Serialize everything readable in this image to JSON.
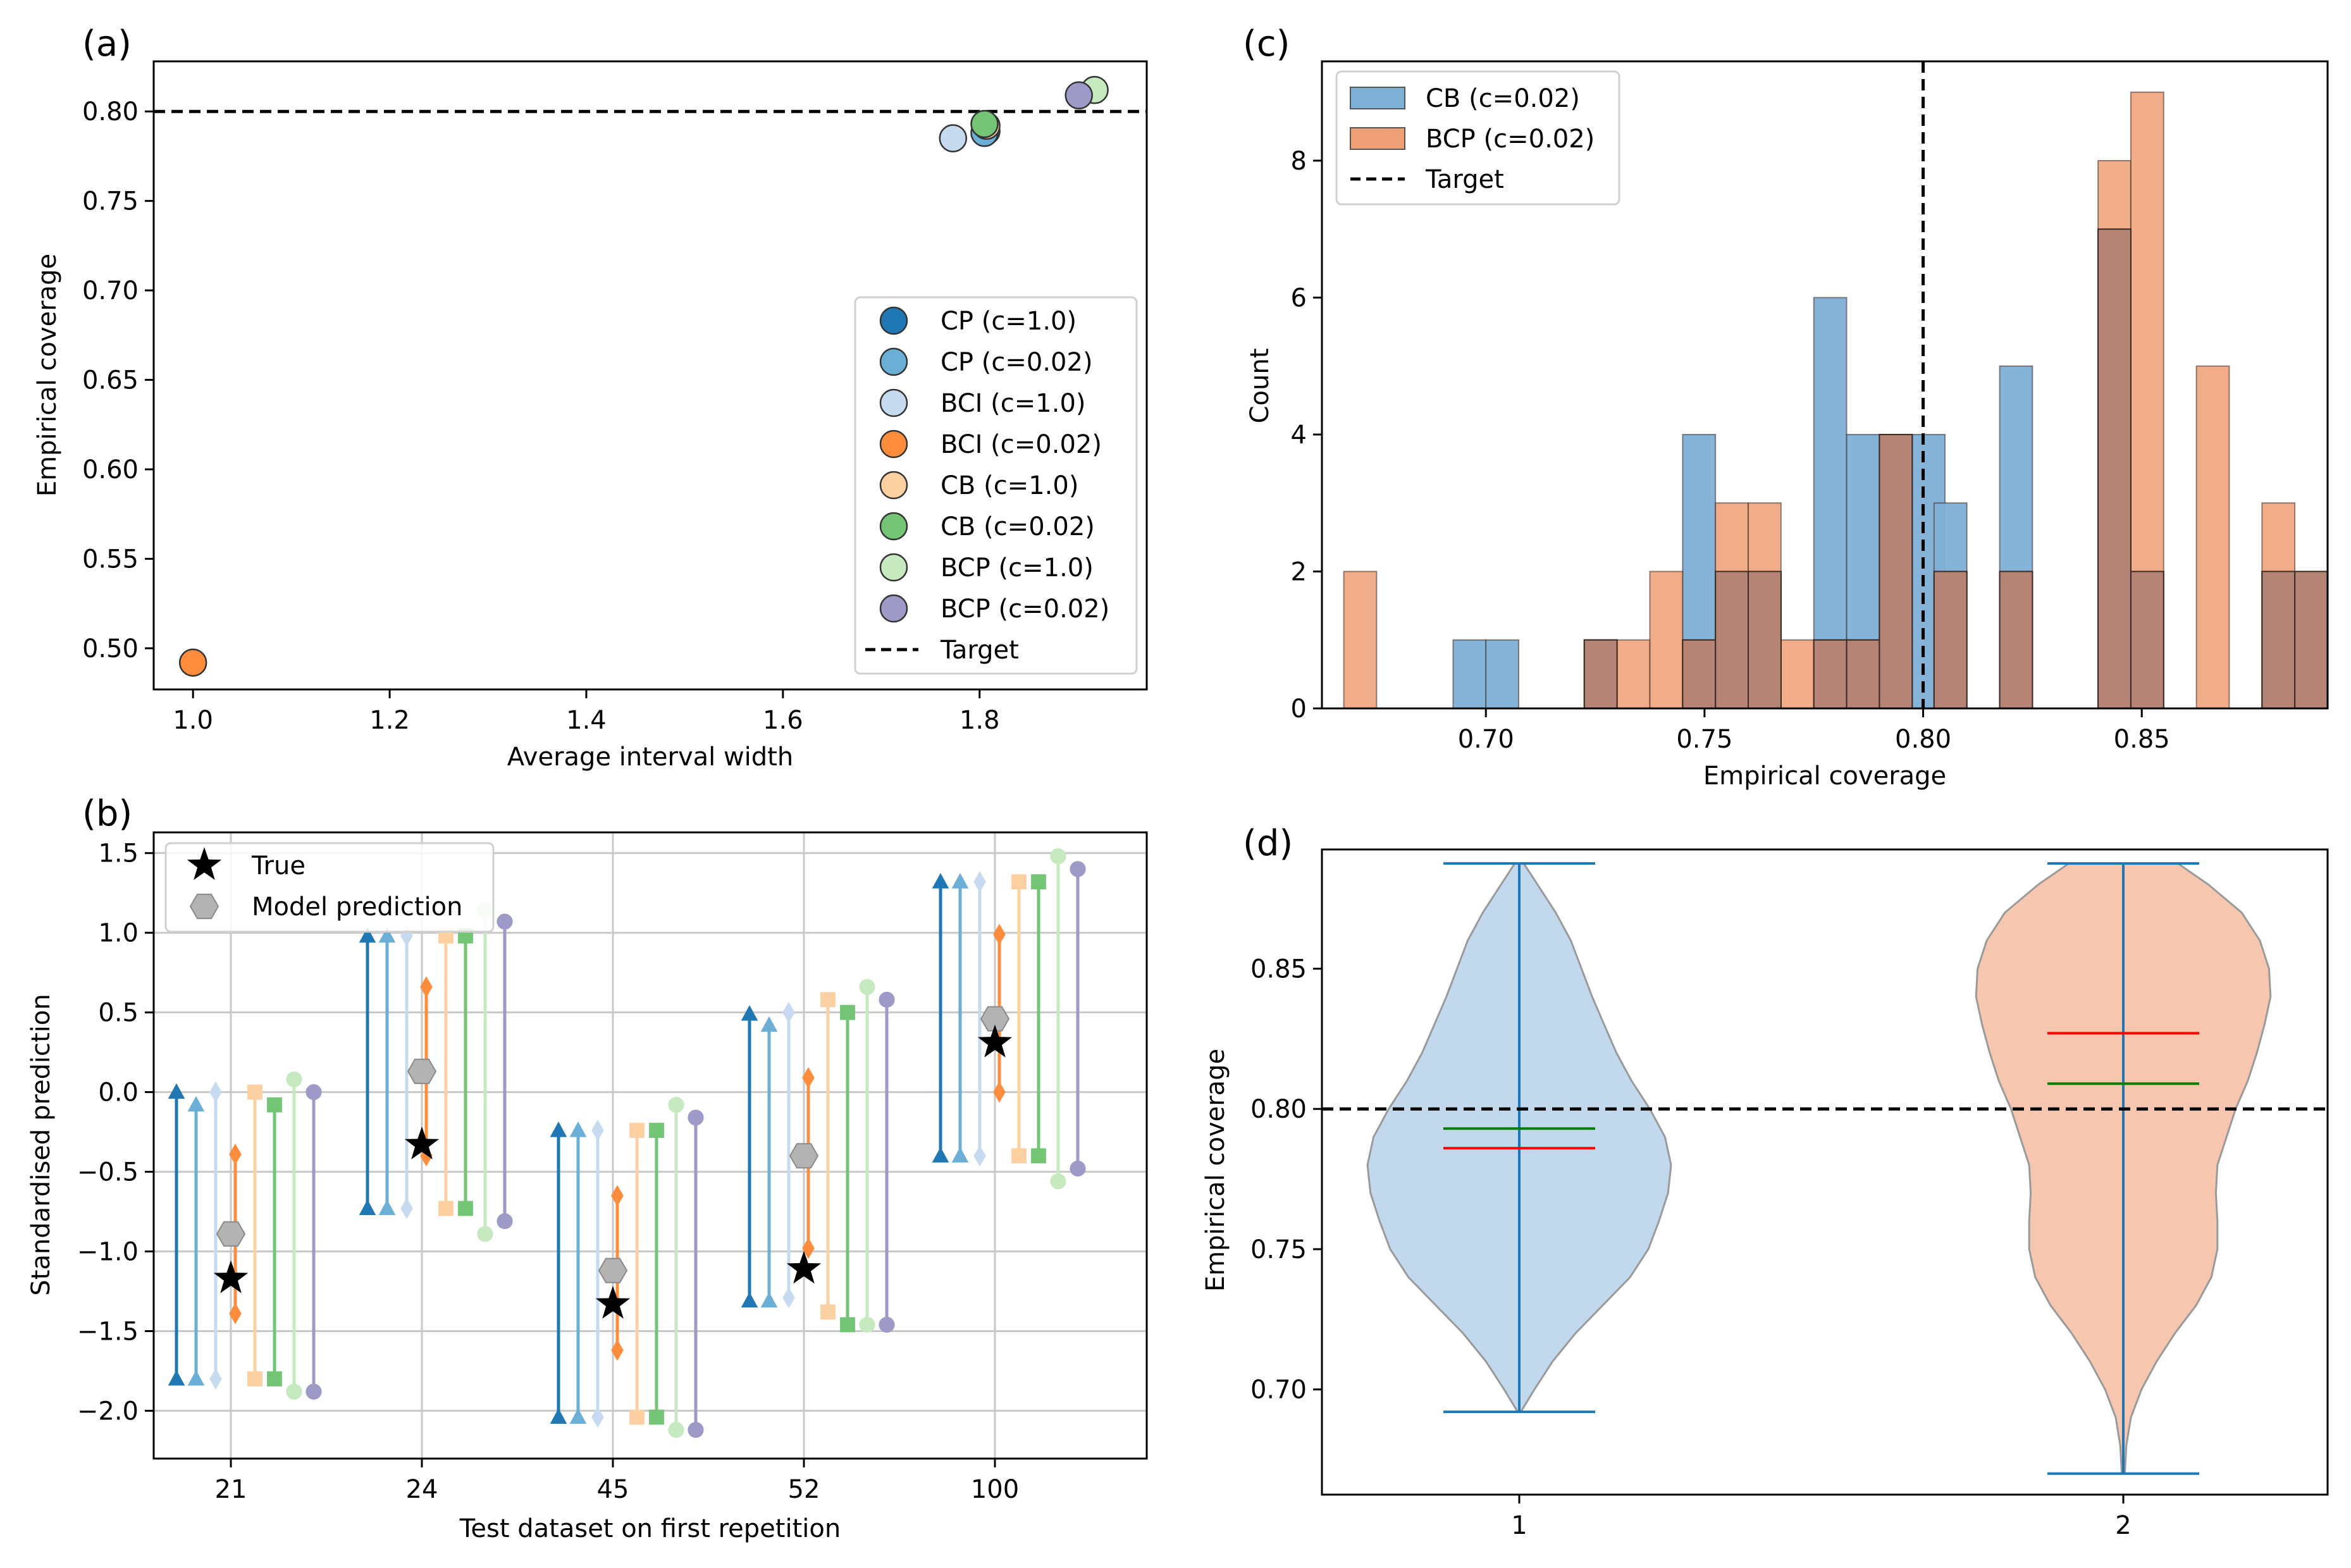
{
  "colors": {
    "cp10": "#1f77b4",
    "cp002": "#6baed6",
    "bci10": "#c6dbef",
    "bci002": "#fd8d3c",
    "cb10": "#fdd0a2",
    "cb002": "#74c476",
    "bcp10": "#c7e9c0",
    "bcp002": "#9e9ac8",
    "hist_cb": "#7fb0d6",
    "hist_bcp": "#ee9f76",
    "hist_overlap": "#b58474",
    "violin_1": "#c2d8ec",
    "violin_2": "#f6c6ae",
    "violin_edge": "#9a9a9a",
    "violin_line": "#1f77b4",
    "mean_line": "#ff0000",
    "median_line": "#008000",
    "true_star": "#000000",
    "model_pred": "#b3b3b3",
    "grid": "#c8c8c8"
  },
  "chart_data": [
    {
      "id": "a",
      "panel_label": "(a)",
      "type": "scatter",
      "xlabel": "Average interval width",
      "ylabel": "Empirical coverage",
      "xlim": [
        0.96,
        1.97
      ],
      "ylim": [
        0.477,
        0.828
      ],
      "xticks": [
        "1.0",
        "1.2",
        "1.4",
        "1.6",
        "1.8"
      ],
      "xtick_values": [
        1.0,
        1.2,
        1.4,
        1.6,
        1.8
      ],
      "yticks": [
        "0.50",
        "0.55",
        "0.60",
        "0.65",
        "0.70",
        "0.75",
        "0.80"
      ],
      "ytick_values": [
        0.5,
        0.55,
        0.6,
        0.65,
        0.7,
        0.75,
        0.8
      ],
      "target": 0.8,
      "target_label": "Target",
      "points": [
        {
          "name": "CP (c=1.0)",
          "color_key": "cp10",
          "x": 1.807,
          "y": 0.789
        },
        {
          "name": "CP (c=0.02)",
          "color_key": "cp002",
          "x": 1.805,
          "y": 0.788
        },
        {
          "name": "BCI (c=1.0)",
          "color_key": "bci10",
          "x": 1.773,
          "y": 0.785
        },
        {
          "name": "BCI (c=0.02)",
          "color_key": "bci002",
          "x": 1.0,
          "y": 0.492
        },
        {
          "name": "CB (c=1.0)",
          "color_key": "cb10",
          "x": 1.807,
          "y": 0.792
        },
        {
          "name": "CB (c=0.02)",
          "color_key": "cb002",
          "x": 1.805,
          "y": 0.793
        },
        {
          "name": "BCP (c=1.0)",
          "color_key": "bcp10",
          "x": 1.917,
          "y": 0.812
        },
        {
          "name": "BCP (c=0.02)",
          "color_key": "bcp002",
          "x": 1.901,
          "y": 0.809
        }
      ],
      "legend": [
        "CP (c=1.0)",
        "CP (c=0.02)",
        "BCI (c=1.0)",
        "BCI (c=0.02)",
        "CB (c=1.0)",
        "CB (c=0.02)",
        "BCP (c=1.0)",
        "BCP (c=0.02)",
        "Target"
      ]
    },
    {
      "id": "b",
      "panel_label": "(b)",
      "type": "interval",
      "xlabel": "Test dataset on first repetition",
      "ylabel": "Standardised prediction",
      "ylim": [
        -2.3,
        1.63
      ],
      "yticks": [
        "−2.0",
        "−1.5",
        "−1.0",
        "−0.5",
        "0.0",
        "0.5",
        "1.0",
        "1.5"
      ],
      "ytick_values": [
        -2.0,
        -1.5,
        -1.0,
        -0.5,
        0.0,
        0.5,
        1.0,
        1.5
      ],
      "categories": [
        "21",
        "24",
        "45",
        "52",
        "100"
      ],
      "method_order": [
        "CP (c=1.0)",
        "CP (c=0.02)",
        "BCI (c=1.0)",
        "BCI (c=0.02)",
        "CB (c=1.0)",
        "CB (c=0.02)",
        "BCP (c=1.0)",
        "BCP (c=0.02)"
      ],
      "method_colors": [
        "cp10",
        "cp002",
        "bci10",
        "bci002",
        "cb10",
        "cb002",
        "bcp10",
        "bcp002"
      ],
      "method_markers": [
        "triangle",
        "triangle",
        "diamond",
        "diamond",
        "square",
        "square",
        "circle",
        "circle"
      ],
      "legend": [
        "True",
        "Model prediction"
      ],
      "datasets": [
        {
          "label": "21",
          "true": -1.17,
          "pred": -0.89,
          "intervals": [
            [
              -1.8,
              0.0
            ],
            [
              -1.8,
              -0.08
            ],
            [
              -1.8,
              0.0
            ],
            [
              -1.39,
              -0.39
            ],
            [
              -1.8,
              0.0
            ],
            [
              -1.8,
              -0.08
            ],
            [
              -1.88,
              0.08
            ],
            [
              -1.88,
              0.0
            ]
          ]
        },
        {
          "label": "24",
          "true": -0.33,
          "pred": 0.13,
          "intervals": [
            [
              -0.73,
              0.98
            ],
            [
              -0.73,
              0.98
            ],
            [
              -0.73,
              0.98
            ],
            [
              -0.4,
              0.66
            ],
            [
              -0.73,
              0.98
            ],
            [
              -0.73,
              0.98
            ],
            [
              -0.89,
              1.14
            ],
            [
              -0.81,
              1.07
            ]
          ]
        },
        {
          "label": "45",
          "true": -1.33,
          "pred": -1.12,
          "intervals": [
            [
              -2.04,
              -0.24
            ],
            [
              -2.04,
              -0.24
            ],
            [
              -2.04,
              -0.24
            ],
            [
              -1.62,
              -0.65
            ],
            [
              -2.04,
              -0.24
            ],
            [
              -2.04,
              -0.24
            ],
            [
              -2.12,
              -0.08
            ],
            [
              -2.12,
              -0.16
            ]
          ]
        },
        {
          "label": "52",
          "true": -1.11,
          "pred": -0.4,
          "intervals": [
            [
              -1.31,
              0.49
            ],
            [
              -1.31,
              0.42
            ],
            [
              -1.29,
              0.5
            ],
            [
              -0.98,
              0.09
            ],
            [
              -1.38,
              0.58
            ],
            [
              -1.46,
              0.5
            ],
            [
              -1.46,
              0.66
            ],
            [
              -1.46,
              0.58
            ]
          ]
        },
        {
          "label": "100",
          "true": 0.31,
          "pred": 0.46,
          "intervals": [
            [
              -0.4,
              1.32
            ],
            [
              -0.4,
              1.32
            ],
            [
              -0.4,
              1.32
            ],
            [
              0.0,
              0.99
            ],
            [
              -0.4,
              1.32
            ],
            [
              -0.4,
              1.32
            ],
            [
              -0.56,
              1.48
            ],
            [
              -0.48,
              1.4
            ]
          ]
        }
      ]
    },
    {
      "id": "c",
      "panel_label": "(c)",
      "type": "histogram",
      "xlabel": "Empirical coverage",
      "ylabel": "Count",
      "xlim": [
        0.6625,
        0.8925
      ],
      "ylim": [
        0,
        9.45
      ],
      "xticks": [
        "0.70",
        "0.75",
        "0.80",
        "0.85"
      ],
      "xtick_values": [
        0.7,
        0.75,
        0.8,
        0.85
      ],
      "yticks": [
        "0",
        "2",
        "4",
        "6",
        "8"
      ],
      "ytick_values": [
        0,
        2,
        4,
        6,
        8
      ],
      "target": 0.8,
      "target_label": "Target",
      "legend": [
        "CB (c=0.02)",
        "BCP (c=0.02)",
        "Target"
      ],
      "series": [
        {
          "name": "CB (c=0.02)",
          "color_key": "hist_cb",
          "bins": [
            [
              0.6925,
              0.7,
              1
            ],
            [
              0.7,
              0.7075,
              1
            ],
            [
              0.7225,
              0.73,
              1
            ],
            [
              0.745,
              0.7525,
              4
            ],
            [
              0.7525,
              0.76,
              2
            ],
            [
              0.76,
              0.7675,
              2
            ],
            [
              0.775,
              0.7825,
              6
            ],
            [
              0.7825,
              0.79,
              4
            ],
            [
              0.79,
              0.7975,
              4
            ],
            [
              0.7975,
              0.805,
              4
            ],
            [
              0.8025,
              0.81,
              3
            ],
            [
              0.8175,
              0.825,
              5
            ],
            [
              0.84,
              0.8475,
              7
            ],
            [
              0.8475,
              0.855,
              2
            ],
            [
              0.8775,
              0.885,
              2
            ],
            [
              0.885,
              0.8925,
              2
            ]
          ]
        },
        {
          "name": "BCP (c=0.02)",
          "color_key": "hist_bcp",
          "bins": [
            [
              0.6675,
              0.675,
              2
            ],
            [
              0.7225,
              0.73,
              1
            ],
            [
              0.73,
              0.7375,
              1
            ],
            [
              0.7375,
              0.745,
              2
            ],
            [
              0.745,
              0.7525,
              1
            ],
            [
              0.7525,
              0.76,
              3
            ],
            [
              0.76,
              0.7675,
              3
            ],
            [
              0.7675,
              0.775,
              1
            ],
            [
              0.775,
              0.7825,
              1
            ],
            [
              0.7825,
              0.79,
              1
            ],
            [
              0.79,
              0.7975,
              4
            ],
            [
              0.8025,
              0.81,
              2
            ],
            [
              0.8175,
              0.825,
              2
            ],
            [
              0.84,
              0.8475,
              8
            ],
            [
              0.8475,
              0.855,
              9
            ],
            [
              0.8625,
              0.87,
              5
            ],
            [
              0.8775,
              0.885,
              3
            ],
            [
              0.885,
              0.8925,
              2
            ]
          ]
        }
      ]
    },
    {
      "id": "d",
      "panel_label": "(d)",
      "type": "violin",
      "ylabel": "Empirical coverage",
      "xticks": [
        "1",
        "2"
      ],
      "ylim": [
        0.6625,
        0.8925
      ],
      "yticks": [
        "0.70",
        "0.75",
        "0.80",
        "0.85"
      ],
      "ytick_values": [
        0.7,
        0.75,
        0.8,
        0.85
      ],
      "target": 0.8,
      "violins": [
        {
          "label": "1",
          "color_key": "violin_1",
          "min": 0.692,
          "max": 0.8875,
          "mean": 0.786,
          "median": 0.793,
          "profile": [
            [
              0.692,
              0.01
            ],
            [
              0.7,
              0.1
            ],
            [
              0.71,
              0.22
            ],
            [
              0.72,
              0.37
            ],
            [
              0.73,
              0.55
            ],
            [
              0.74,
              0.73
            ],
            [
              0.75,
              0.85
            ],
            [
              0.76,
              0.92
            ],
            [
              0.77,
              0.98
            ],
            [
              0.78,
              1.0
            ],
            [
              0.79,
              0.96
            ],
            [
              0.8,
              0.86
            ],
            [
              0.81,
              0.74
            ],
            [
              0.82,
              0.64
            ],
            [
              0.83,
              0.56
            ],
            [
              0.84,
              0.48
            ],
            [
              0.85,
              0.41
            ],
            [
              0.86,
              0.34
            ],
            [
              0.87,
              0.24
            ],
            [
              0.88,
              0.12
            ],
            [
              0.8875,
              0.03
            ]
          ]
        },
        {
          "label": "2",
          "color_key": "violin_2",
          "min": 0.67,
          "max": 0.8875,
          "mean": 0.827,
          "median": 0.809,
          "profile": [
            [
              0.67,
              0.01
            ],
            [
              0.68,
              0.02
            ],
            [
              0.69,
              0.05
            ],
            [
              0.7,
              0.12
            ],
            [
              0.71,
              0.22
            ],
            [
              0.72,
              0.34
            ],
            [
              0.73,
              0.48
            ],
            [
              0.74,
              0.58
            ],
            [
              0.75,
              0.62
            ],
            [
              0.76,
              0.62
            ],
            [
              0.77,
              0.61
            ],
            [
              0.78,
              0.62
            ],
            [
              0.79,
              0.68
            ],
            [
              0.8,
              0.74
            ],
            [
              0.81,
              0.82
            ],
            [
              0.82,
              0.88
            ],
            [
              0.83,
              0.93
            ],
            [
              0.84,
              0.97
            ],
            [
              0.85,
              0.96
            ],
            [
              0.86,
              0.9
            ],
            [
              0.87,
              0.78
            ],
            [
              0.88,
              0.56
            ],
            [
              0.8875,
              0.36
            ]
          ]
        }
      ]
    }
  ]
}
